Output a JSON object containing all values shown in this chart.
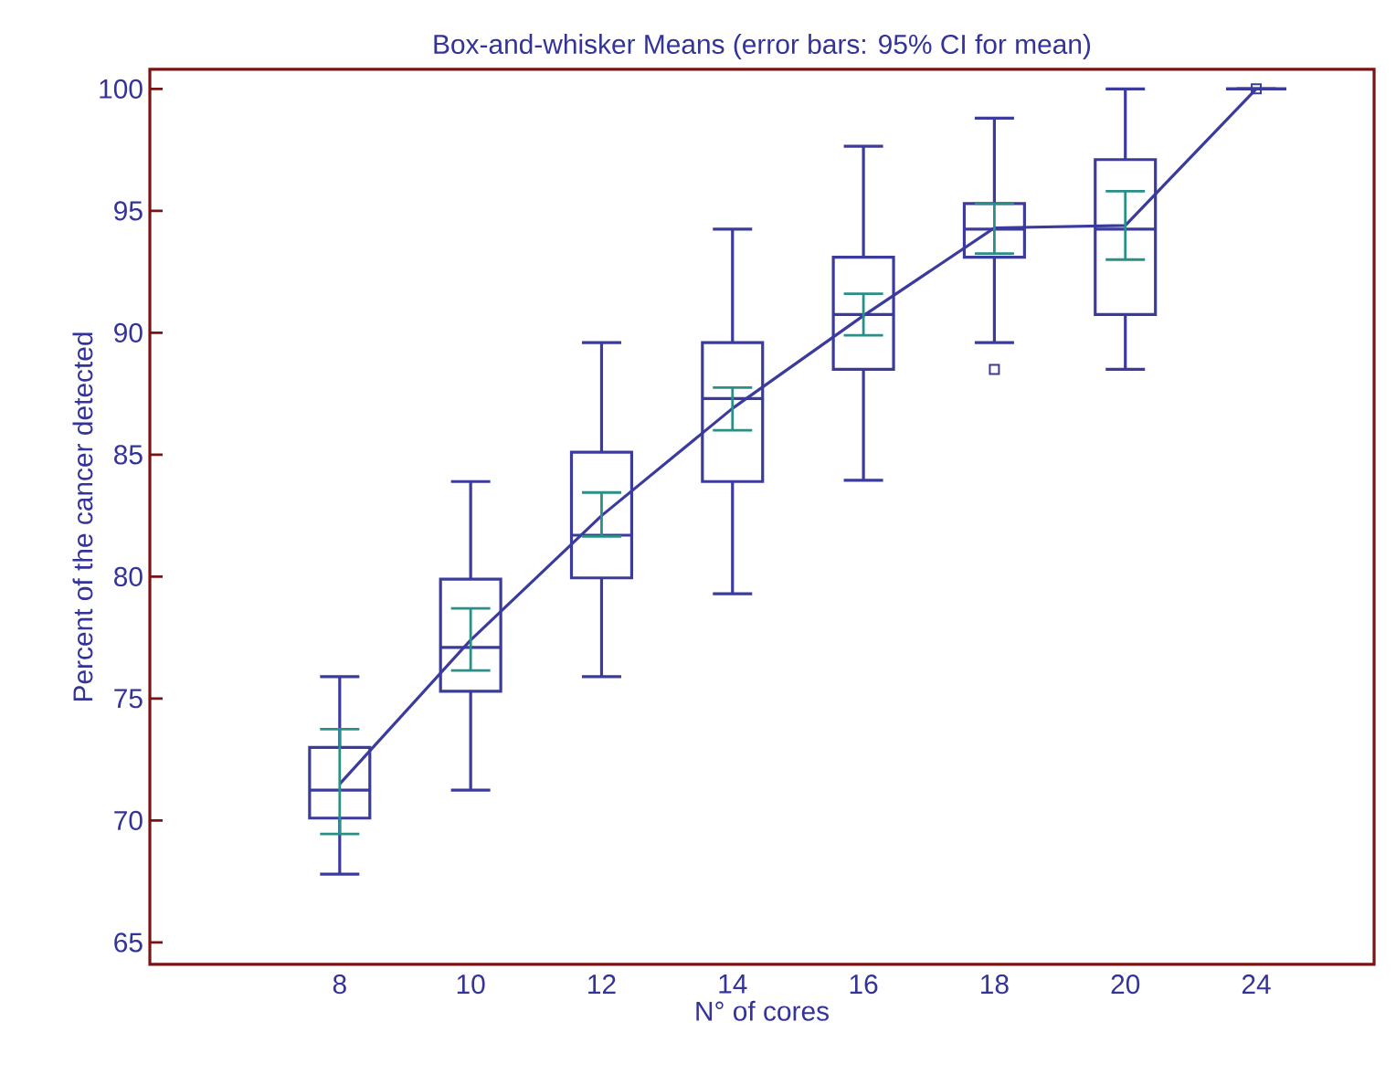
{
  "chart_data": {
    "type": "box",
    "title": "Box-and-whisker  Means  (error bars: 95% CI for mean)",
    "xlabel": "N° of cores",
    "ylabel": "Percent of the cancer detected",
    "categories": [
      "8",
      "10",
      "12",
      "14",
      "16",
      "18",
      "20",
      "24"
    ],
    "ylim": [
      64.1,
      100.8
    ],
    "yticks": [
      65,
      70,
      75,
      80,
      85,
      90,
      95,
      100
    ],
    "grid": false,
    "legend": false,
    "marker": "none",
    "series": [
      {
        "color": "#3b3b9e",
        "boxes": [
          {
            "low": 67.8,
            "q1": 70.1,
            "median": 71.25,
            "q3": 73.0,
            "high": 75.9
          },
          {
            "low": 71.25,
            "q1": 75.3,
            "median": 77.1,
            "q3": 79.9,
            "high": 83.9
          },
          {
            "low": 75.9,
            "q1": 79.95,
            "median": 81.7,
            "q3": 85.1,
            "high": 89.6
          },
          {
            "low": 79.3,
            "q1": 83.9,
            "median": 87.3,
            "q3": 89.6,
            "high": 94.25
          },
          {
            "low": 83.95,
            "q1": 88.5,
            "median": 90.75,
            "q3": 93.1,
            "high": 97.65
          },
          {
            "low": 89.6,
            "q1": 93.1,
            "median": 94.25,
            "q3": 95.3,
            "high": 98.8,
            "outliers": [
              88.5
            ]
          },
          {
            "low": 88.5,
            "q1": 90.75,
            "median": 94.25,
            "q3": 97.1,
            "high": 100
          },
          {
            "low": 100,
            "q1": 100,
            "median": 100,
            "q3": 100,
            "high": 100,
            "outliers": [
              100
            ]
          }
        ]
      },
      {
        "type": "line",
        "color": "#3b3b9e",
        "values": [
          71.5,
          77.4,
          82.5,
          86.9,
          90.7,
          94.3,
          94.4,
          100
        ],
        "errors": [
          [
            69.45,
            73.75
          ],
          [
            76.15,
            78.7
          ],
          [
            81.65,
            83.45
          ],
          [
            86.0,
            87.75
          ],
          [
            89.9,
            91.6
          ],
          [
            93.25,
            95.3
          ],
          [
            93.0,
            95.8
          ],
          null
        ]
      }
    ]
  }
}
